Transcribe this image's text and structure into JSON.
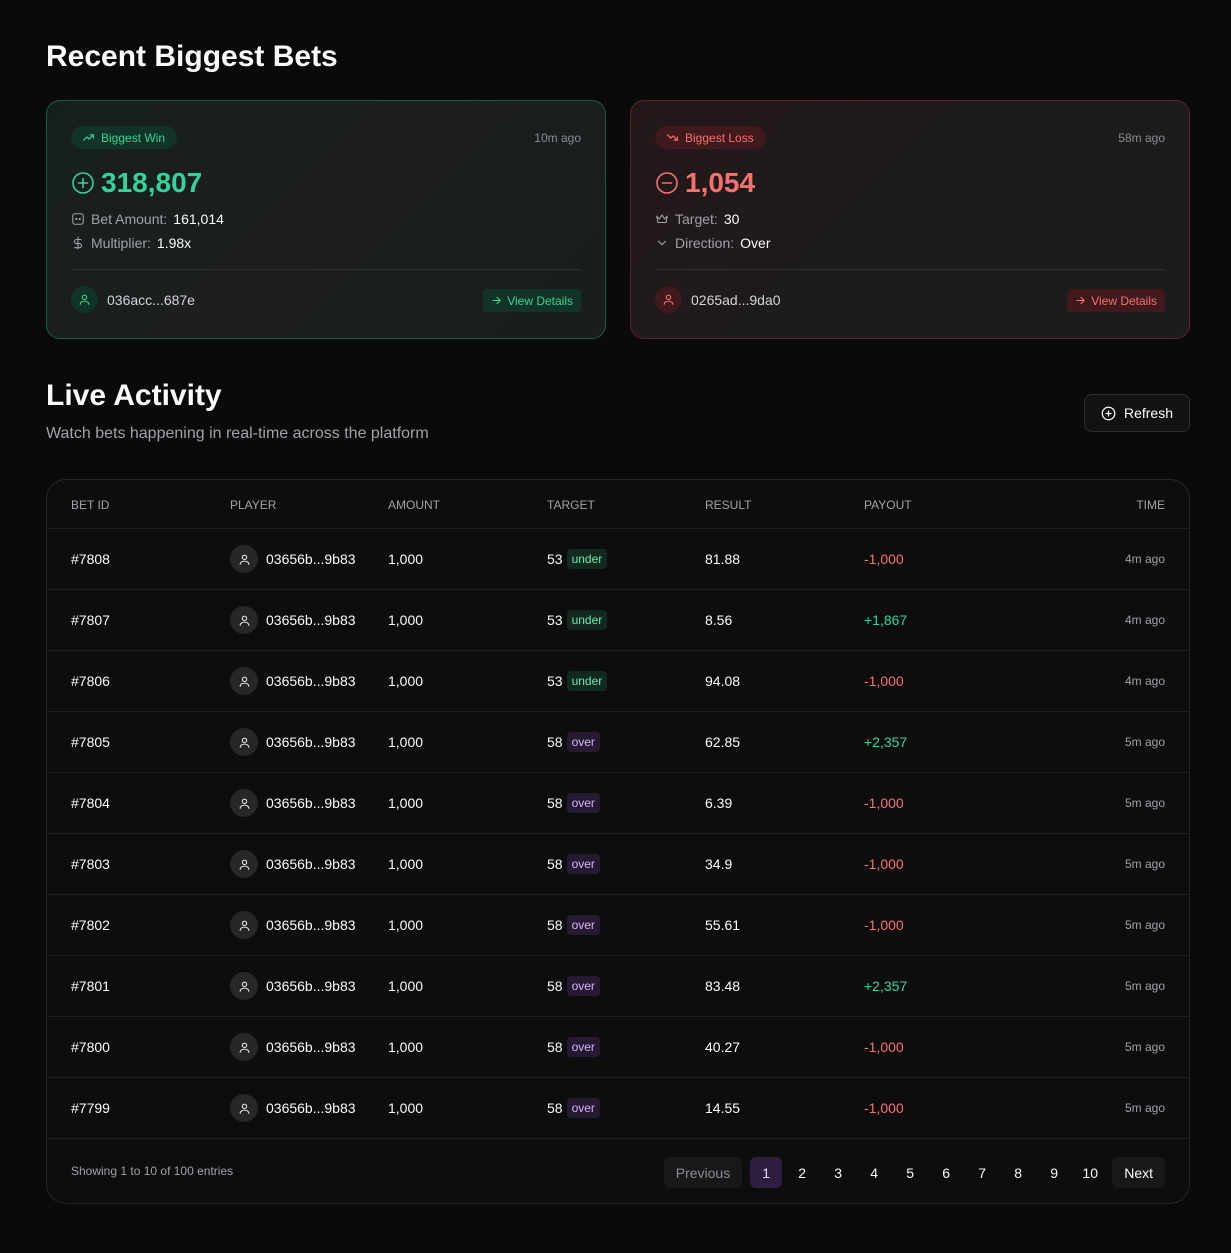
{
  "header": {
    "title": "Recent Biggest Bets"
  },
  "win_card": {
    "badge": "Biggest Win",
    "time_ago": "10m ago",
    "amount": "318,807",
    "meta1_label": "Bet Amount:",
    "meta1_value": "161,014",
    "meta2_label": "Multiplier:",
    "meta2_value": "1.98x",
    "player": "036acc...687e",
    "view_details": "View Details",
    "color": "#34d399"
  },
  "loss_card": {
    "badge": "Biggest Loss",
    "time_ago": "58m ago",
    "amount": "1,054",
    "meta1_label": "Target:",
    "meta1_value": "30",
    "meta2_label": "Direction:",
    "meta2_value": "Over",
    "player": "0265ad...9da0",
    "view_details": "View Details",
    "color": "#f87171"
  },
  "activity": {
    "title": "Live Activity",
    "subtitle": "Watch bets happening in real-time across the platform",
    "refresh_label": "Refresh"
  },
  "table": {
    "columns": [
      "BET ID",
      "PLAYER",
      "AMOUNT",
      "TARGET",
      "RESULT",
      "PAYOUT",
      "TIME"
    ],
    "rows": [
      {
        "id": "#7808",
        "player": "03656b...9b83",
        "amount": "1,000",
        "target": "53",
        "dir": "under",
        "result": "81.88",
        "payout": "-1,000",
        "time": "4m ago"
      },
      {
        "id": "#7807",
        "player": "03656b...9b83",
        "amount": "1,000",
        "target": "53",
        "dir": "under",
        "result": "8.56",
        "payout": "+1,867",
        "time": "4m ago"
      },
      {
        "id": "#7806",
        "player": "03656b...9b83",
        "amount": "1,000",
        "target": "53",
        "dir": "under",
        "result": "94.08",
        "payout": "-1,000",
        "time": "4m ago"
      },
      {
        "id": "#7805",
        "player": "03656b...9b83",
        "amount": "1,000",
        "target": "58",
        "dir": "over",
        "result": "62.85",
        "payout": "+2,357",
        "time": "5m ago"
      },
      {
        "id": "#7804",
        "player": "03656b...9b83",
        "amount": "1,000",
        "target": "58",
        "dir": "over",
        "result": "6.39",
        "payout": "-1,000",
        "time": "5m ago"
      },
      {
        "id": "#7803",
        "player": "03656b...9b83",
        "amount": "1,000",
        "target": "58",
        "dir": "over",
        "result": "34.9",
        "payout": "-1,000",
        "time": "5m ago"
      },
      {
        "id": "#7802",
        "player": "03656b...9b83",
        "amount": "1,000",
        "target": "58",
        "dir": "over",
        "result": "55.61",
        "payout": "-1,000",
        "time": "5m ago"
      },
      {
        "id": "#7801",
        "player": "03656b...9b83",
        "amount": "1,000",
        "target": "58",
        "dir": "over",
        "result": "83.48",
        "payout": "+2,357",
        "time": "5m ago"
      },
      {
        "id": "#7800",
        "player": "03656b...9b83",
        "amount": "1,000",
        "target": "58",
        "dir": "over",
        "result": "40.27",
        "payout": "-1,000",
        "time": "5m ago"
      },
      {
        "id": "#7799",
        "player": "03656b...9b83",
        "amount": "1,000",
        "target": "58",
        "dir": "over",
        "result": "14.55",
        "payout": "-1,000",
        "time": "5m ago"
      }
    ]
  },
  "pagination": {
    "showing": "Showing 1 to 10 of 100 entries",
    "previous": "Previous",
    "next": "Next",
    "pages": [
      "1",
      "2",
      "3",
      "4",
      "5",
      "6",
      "7",
      "8",
      "9",
      "10"
    ],
    "current": "1"
  },
  "colors": {
    "accent_purple": "#2e1f42",
    "positive": "#34d399",
    "negative": "#f87171"
  }
}
